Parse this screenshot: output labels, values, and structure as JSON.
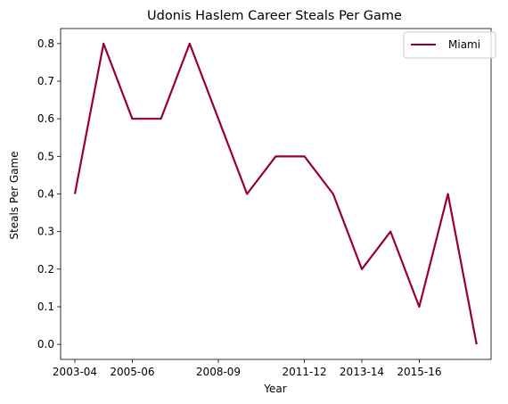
{
  "chart_data": {
    "type": "line",
    "title": "Udonis Haslem Career Steals Per Game",
    "xlabel": "Year",
    "ylabel": "Steals Per Game",
    "x": [
      "2003-04",
      "2004-05",
      "2005-06",
      "2006-07",
      "2007-08",
      "2008-09",
      "2009-10",
      "2010-11",
      "2011-12",
      "2012-13",
      "2013-14",
      "2014-15",
      "2015-16",
      "2016-17",
      "2017-18"
    ],
    "x_tick_labels": [
      "2003-04",
      "2005-06",
      "2008-09",
      "2011-12",
      "2013-14",
      "2015-16"
    ],
    "y_ticks": [
      "0.0",
      "0.1",
      "0.2",
      "0.3",
      "0.4",
      "0.5",
      "0.6",
      "0.7",
      "0.8"
    ],
    "ylim": [
      -0.04,
      0.84
    ],
    "grid": false,
    "legend_position": "top-right",
    "series": [
      {
        "name": "Miami",
        "color": "#98002e",
        "values": [
          0.4,
          0.8,
          0.6,
          0.6,
          0.8,
          0.6,
          0.4,
          0.5,
          0.5,
          0.4,
          0.2,
          0.3,
          0.1,
          0.4,
          0.0
        ]
      }
    ]
  }
}
